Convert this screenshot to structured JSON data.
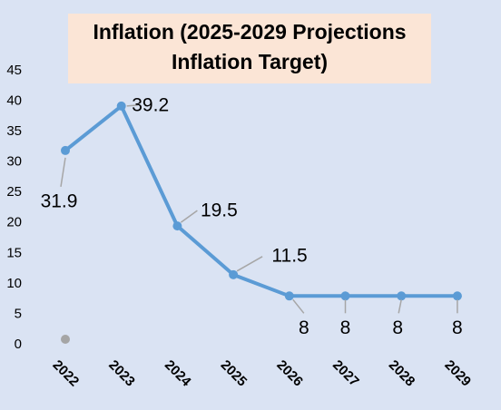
{
  "chart_data": {
    "type": "line",
    "title": [
      "Inflation (2025-2029 Projections",
      "Inflation Target)"
    ],
    "categories": [
      "2022",
      "2023",
      "2024",
      "2025",
      "2026",
      "2027",
      "2028",
      "2029"
    ],
    "values": [
      31.9,
      39.2,
      19.5,
      11.5,
      8,
      8,
      8,
      8
    ],
    "color": "#5b9bd5",
    "ylim": [
      0,
      45
    ],
    "yticks": [
      0,
      5,
      10,
      15,
      20,
      25,
      30,
      35,
      40,
      45
    ],
    "grid": false
  }
}
